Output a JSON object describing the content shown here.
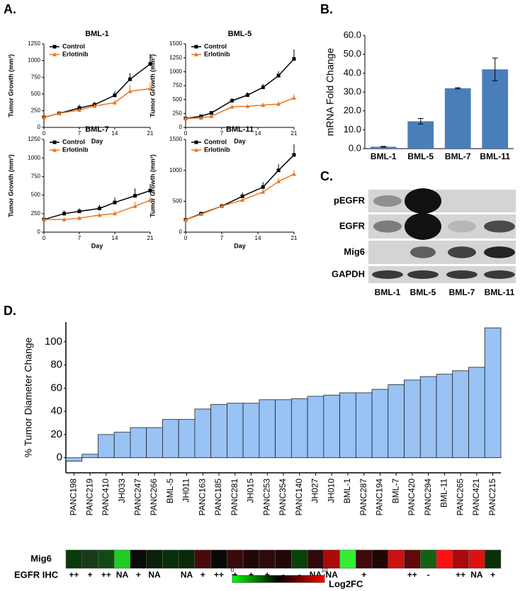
{
  "panel_labels": [
    "A.",
    "B.",
    "C.",
    "D."
  ],
  "blot": {
    "rows": [
      "pEGFR",
      "EGFR",
      "Mig6",
      "GAPDH"
    ],
    "columns": [
      "BML-1",
      "BML-5",
      "BML-7",
      "BML-11"
    ]
  },
  "chart_data": [
    {
      "type": "line",
      "title": "BML-1",
      "x_label": "Day",
      "y_label": "Tumor Growth (mm³)",
      "x": [
        0,
        3,
        7,
        10,
        14,
        17,
        21
      ],
      "xlim": [
        0,
        21
      ],
      "xticks": [
        0,
        7,
        14,
        21
      ],
      "ylim": [
        0,
        1250
      ],
      "yticks": [
        0,
        250,
        500,
        750,
        1000,
        1250
      ],
      "legend": "upper left",
      "series": [
        {
          "name": "Control",
          "color": "#000000",
          "marker": "square",
          "values": [
            150,
            210,
            290,
            340,
            480,
            720,
            950
          ],
          "errors": [
            15,
            30,
            50,
            40,
            60,
            90,
            150
          ]
        },
        {
          "name": "Erlotinib",
          "color": "#e87722",
          "marker": "triangle",
          "values": [
            150,
            210,
            260,
            320,
            370,
            540,
            580
          ],
          "errors": [
            10,
            25,
            30,
            30,
            40,
            100,
            90
          ]
        }
      ]
    },
    {
      "type": "line",
      "title": "BML-5",
      "x_label": "Day",
      "y_label": "Tumor Growth (mm³)",
      "x": [
        0,
        3,
        5,
        9,
        12,
        15,
        18,
        21
      ],
      "xlim": [
        0,
        21
      ],
      "xticks": [
        0,
        7,
        14,
        21
      ],
      "ylim": [
        0,
        1500
      ],
      "yticks": [
        0,
        250,
        500,
        750,
        1000,
        1250,
        1500
      ],
      "legend": "upper left",
      "series": [
        {
          "name": "Control",
          "color": "#000000",
          "marker": "square",
          "values": [
            160,
            200,
            260,
            480,
            580,
            720,
            930,
            1230
          ],
          "errors": [
            10,
            20,
            30,
            40,
            50,
            60,
            80,
            170
          ]
        },
        {
          "name": "Erlotinib",
          "color": "#e87722",
          "marker": "triangle",
          "values": [
            160,
            170,
            200,
            370,
            380,
            400,
            420,
            530
          ],
          "errors": [
            10,
            15,
            20,
            30,
            30,
            40,
            50,
            70
          ]
        }
      ]
    },
    {
      "type": "line",
      "title": "BML-7",
      "x_label": "Day",
      "y_label": "Tumor Growth (mm³)",
      "x": [
        0,
        4,
        7,
        11,
        14,
        18,
        21
      ],
      "xlim": [
        0,
        21
      ],
      "xticks": [
        0,
        7,
        14,
        21
      ],
      "ylim": [
        0,
        1250
      ],
      "yticks": [
        0,
        250,
        500,
        750,
        1000,
        1250
      ],
      "legend": "upper left",
      "series": [
        {
          "name": "Control",
          "color": "#000000",
          "marker": "square",
          "values": [
            170,
            250,
            280,
            320,
            400,
            490,
            560
          ],
          "errors": [
            20,
            40,
            40,
            50,
            70,
            100,
            90
          ]
        },
        {
          "name": "Erlotinib",
          "color": "#e87722",
          "marker": "triangle",
          "values": [
            170,
            170,
            190,
            230,
            250,
            350,
            430
          ],
          "errors": [
            10,
            20,
            20,
            30,
            40,
            60,
            50
          ]
        }
      ]
    },
    {
      "type": "line",
      "title": "BML-11",
      "x_label": "Day",
      "y_label": "Tumor Growth (mm³)",
      "x": [
        0,
        3,
        7,
        11,
        15,
        18,
        21
      ],
      "xlim": [
        0,
        21
      ],
      "xticks": [
        0,
        7,
        14,
        21
      ],
      "ylim": [
        0,
        1500
      ],
      "yticks": [
        0,
        500,
        1000,
        1500
      ],
      "legend": "upper left",
      "series": [
        {
          "name": "Control",
          "color": "#000000",
          "marker": "square",
          "values": [
            200,
            300,
            420,
            580,
            730,
            1000,
            1250
          ],
          "errors": [
            20,
            30,
            40,
            60,
            80,
            100,
            170
          ]
        },
        {
          "name": "Erlotinib",
          "color": "#e87722",
          "marker": "triangle",
          "values": [
            200,
            290,
            420,
            520,
            650,
            820,
            940
          ],
          "errors": [
            10,
            25,
            30,
            40,
            50,
            60,
            60
          ]
        }
      ]
    },
    {
      "type": "bar",
      "y_label": "mRNA Fold Change",
      "categories": [
        "BML-1",
        "BML-5",
        "BML-7",
        "BML-11"
      ],
      "values": [
        1,
        14.5,
        32,
        42
      ],
      "errors": [
        0.2,
        1.5,
        0.3,
        6
      ],
      "color": "#4a7ebb",
      "ylim": [
        0,
        60
      ],
      "yticks": [
        {
          "value": 0,
          "label": "0.0"
        },
        {
          "value": 10,
          "label": "10.0"
        },
        {
          "value": 20,
          "label": "20.0"
        },
        {
          "value": 30,
          "label": "30.0"
        },
        {
          "value": 40,
          "label": "40.0"
        },
        {
          "value": 50,
          "label": "50.0"
        },
        {
          "value": 60,
          "label": "60.0"
        }
      ]
    },
    {
      "type": "waterfall",
      "y_label": "% Tumor Diameter Change",
      "color": "#99c2f5",
      "categories": [
        "PANC198",
        "PANC219",
        "PANC410",
        "JH033",
        "PANC247",
        "PANC266",
        "BML-5",
        "JH011",
        "PANC163",
        "PANC185",
        "PANC281",
        "JH015",
        "PANC253",
        "PANC354",
        "PANC140",
        "JH027",
        "JH010",
        "BML-1",
        "PANC287",
        "PANC194",
        "BML-7",
        "PANC420",
        "PANC294",
        "BML-11",
        "PANC265",
        "PANC421",
        "PANC215"
      ],
      "values": [
        -3,
        3,
        20,
        22,
        26,
        26,
        33,
        33,
        42,
        46,
        47,
        47,
        50,
        50,
        51,
        53,
        54,
        56,
        56,
        59,
        63,
        67,
        70,
        72,
        75,
        78,
        112
      ],
      "ylim": [
        -13,
        117
      ],
      "yticks": [
        0,
        20,
        40,
        60,
        80,
        100
      ],
      "heatmap": {
        "label": "Mig6",
        "colors": [
          "#0a3a0a",
          "#1a3a1a",
          "#134a13",
          "#22cc22",
          "#0a0a0a",
          "#0a200a",
          "#0a300a",
          "#0a2a0a",
          "#4a0a0a",
          "#080808",
          "#3a0a0a",
          "#200808",
          "#300a0a",
          "#200808",
          "#0a400a",
          "#300a0a",
          "#aa0a0a",
          "#33ee33",
          "#400a0a",
          "#200505",
          "#cc1111",
          "#600a0a",
          "#156015",
          "#ff1010",
          "#aa0a0a",
          "#dd1111",
          "#0a300a"
        ]
      },
      "ihc": {
        "label": "EGFR IHC",
        "values": [
          "++",
          "+",
          "++",
          "NA",
          "+",
          "NA",
          null,
          "NA",
          "+",
          "++",
          "+",
          "+",
          "+",
          "-",
          "-",
          "NA",
          "NA",
          null,
          "+",
          null,
          null,
          "++",
          "-",
          null,
          "++",
          "NA",
          "+"
        ]
      },
      "colorbar": {
        "lim": [
          0,
          10
        ],
        "ticks": [
          0,
          10
        ],
        "label": "Log2FC",
        "colors": [
          "#00ff00",
          "#000000",
          "#ff0000"
        ]
      }
    }
  ]
}
